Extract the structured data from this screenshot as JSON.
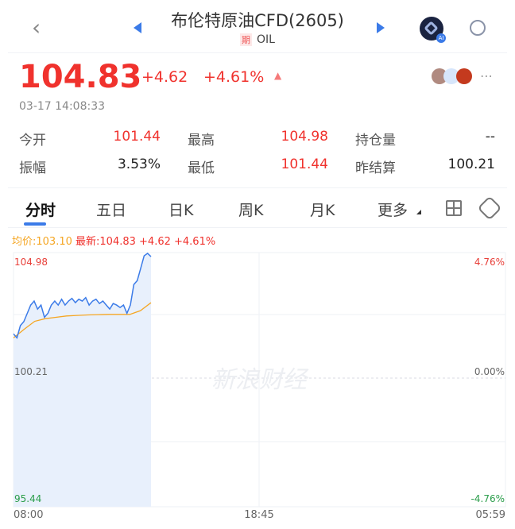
{
  "header": {
    "title": "布伦特原油CFD(2605)",
    "badge": "期",
    "symbol": "OIL",
    "ai_label": "AI"
  },
  "quote": {
    "price": "104.83",
    "change": "+4.62",
    "change_pct": "+4.61%",
    "timestamp": "03-17 14:08:33"
  },
  "stats": [
    {
      "label": "今开",
      "value": "101.44",
      "color": "red"
    },
    {
      "label": "最高",
      "value": "104.98",
      "color": "red"
    },
    {
      "label": "持仓量",
      "value": "--",
      "color": "dark"
    },
    {
      "label": "振幅",
      "value": "3.53%",
      "color": "dark"
    },
    {
      "label": "最低",
      "value": "101.44",
      "color": "red"
    },
    {
      "label": "昨结算",
      "value": "100.21",
      "color": "dark"
    }
  ],
  "tabs": [
    "分时",
    "五日",
    "日K",
    "周K",
    "月K",
    "更多"
  ],
  "legend": {
    "avg": "均价:103.10",
    "latest": "最新:104.83",
    "change": "+4.62",
    "pct": "+4.61%"
  },
  "watermark": "新浪财经",
  "colors": {
    "up": "#f0322d",
    "price_line": "#3b7be8",
    "avg_line": "#f5a623",
    "accent": "#3b7be8"
  },
  "chart_data": {
    "type": "line",
    "ylim": [
      95.44,
      104.98
    ],
    "y_labels": [
      "104.98",
      "100.21",
      "95.44"
    ],
    "pct_labels": [
      "4.76%",
      "0.00%",
      "-4.76%"
    ],
    "x_labels": [
      "08:00",
      "18:45",
      "05:59"
    ],
    "series": [
      {
        "values": [
          101.93,
          101.78,
          102.24,
          102.39,
          102.7,
          103.01,
          103.16,
          102.86,
          103.01,
          102.55,
          102.7,
          103.01,
          103.16,
          103.01,
          103.23,
          103.01,
          103.16,
          103.26,
          103.1,
          103.23,
          103.16,
          103.29,
          103.01,
          103.16,
          103.23,
          103.07,
          103.16,
          103.01,
          102.86,
          103.07,
          103.01,
          102.92,
          103.01,
          102.7,
          103.01,
          103.78,
          103.93,
          104.39,
          104.86,
          104.95,
          104.83
        ]
      },
      {
        "values": [
          101.78,
          102.1,
          102.4,
          102.5,
          102.55,
          102.6,
          102.62,
          102.64,
          102.65,
          102.66,
          102.66,
          102.66,
          102.8,
          103.1
        ]
      }
    ]
  }
}
